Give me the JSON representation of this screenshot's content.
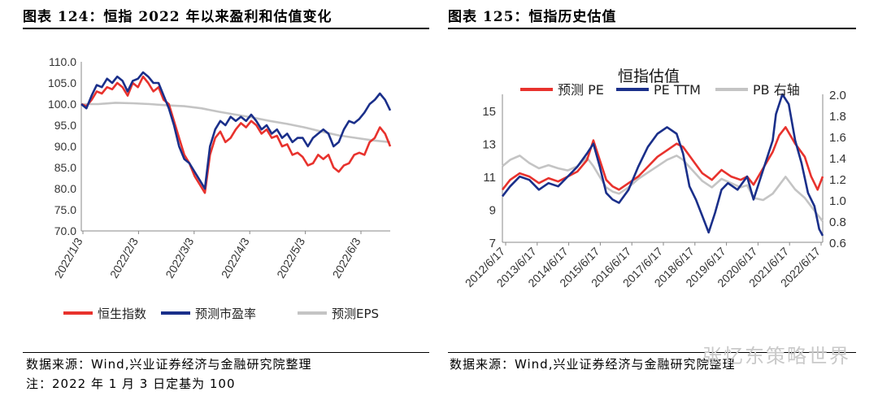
{
  "left_panel": {
    "title": "图表 124：恒指 2022 年以来盈利和估值变化",
    "source": "数据来源：Wind,兴业证券经济与金融研究院整理",
    "note": "注：2022 年 1 月 3 日定基为 100"
  },
  "right_panel": {
    "title": "图表 125：恒指历史估值",
    "source": "数据来源：Wind,兴业证券经济与金融研究院整理"
  },
  "watermark": "张忆东策略世界",
  "colors": {
    "red": "#e8322d",
    "navy": "#1a2f8a",
    "gray": "#c4c4c4"
  },
  "chart_data": [
    {
      "type": "line",
      "title": "",
      "xlabel": "",
      "ylabel": "",
      "ylim": [
        70,
        110
      ],
      "y_ticks": [
        "110.0",
        "105.0",
        "100.0",
        "95.0",
        "90.0",
        "85.0",
        "80.0",
        "75.0",
        "70.0"
      ],
      "x_ticks": [
        "2022/1/3",
        "2022/2/3",
        "2022/3/3",
        "2022/4/3",
        "2022/5/3",
        "2022/6/3"
      ],
      "x_range": [
        0,
        180
      ],
      "grid": false,
      "legend": "bottom",
      "series": [
        {
          "name": "恒生指数",
          "color": "#e8322d",
          "x": [
            0,
            3,
            6,
            9,
            12,
            15,
            18,
            21,
            24,
            27,
            30,
            33,
            36,
            39,
            42,
            45,
            48,
            51,
            54,
            57,
            60,
            63,
            66,
            69,
            72,
            75,
            78,
            81,
            84,
            87,
            90,
            93,
            96,
            99,
            102,
            105,
            108,
            111,
            114,
            117,
            120,
            123,
            126,
            129,
            132,
            135,
            138,
            141,
            144,
            147,
            150,
            153,
            156,
            159,
            162,
            165,
            168,
            171,
            174,
            177,
            180
          ],
          "y": [
            100,
            99.5,
            101,
            103,
            102.5,
            104,
            103.5,
            105,
            104,
            102,
            105,
            104,
            106.5,
            105,
            103,
            104,
            101,
            100,
            96,
            92,
            88,
            86,
            83,
            81,
            79,
            88,
            92,
            93.5,
            91,
            92,
            94,
            95.5,
            94.5,
            96,
            95,
            93,
            94,
            92,
            92.5,
            90,
            90.5,
            88,
            88.5,
            87.5,
            85.5,
            86,
            88,
            87,
            88,
            85,
            84,
            85.5,
            86,
            88,
            88.5,
            88,
            91,
            92,
            94.5,
            93,
            90
          ]
        },
        {
          "name": "预测市盈率",
          "color": "#1a2f8a",
          "x": [
            0,
            3,
            6,
            9,
            12,
            15,
            18,
            21,
            24,
            27,
            30,
            33,
            36,
            39,
            42,
            45,
            48,
            51,
            54,
            57,
            60,
            63,
            66,
            69,
            72,
            75,
            78,
            81,
            84,
            87,
            90,
            93,
            96,
            99,
            102,
            105,
            108,
            111,
            114,
            117,
            120,
            123,
            126,
            129,
            132,
            135,
            138,
            141,
            144,
            147,
            150,
            153,
            156,
            159,
            162,
            165,
            168,
            171,
            174,
            177,
            180
          ],
          "y": [
            100,
            99,
            102,
            104.5,
            104,
            106,
            105,
            106.5,
            105.5,
            103,
            105.5,
            106,
            107.5,
            106.5,
            105,
            105,
            102,
            99,
            95,
            90,
            87,
            86,
            84,
            82,
            80,
            90,
            94,
            96,
            95,
            97,
            96,
            97,
            96,
            97.5,
            96,
            94,
            95,
            93,
            94,
            92,
            93,
            91,
            92,
            92,
            90,
            92,
            93,
            94,
            93,
            90,
            91,
            94,
            96,
            95.5,
            96.5,
            98,
            100,
            101,
            102.5,
            101,
            98.5
          ]
        },
        {
          "name": "预测EPS",
          "color": "#c4c4c4",
          "x": [
            0,
            10,
            20,
            30,
            40,
            50,
            60,
            70,
            80,
            90,
            100,
            110,
            120,
            130,
            140,
            150,
            160,
            170,
            180
          ],
          "y": [
            100,
            100,
            100.3,
            100.2,
            100,
            99.7,
            99.5,
            99,
            98.2,
            97.5,
            96.8,
            96,
            95.3,
            94.5,
            93.5,
            92.6,
            92,
            91.4,
            91
          ]
        }
      ]
    },
    {
      "type": "line",
      "title": "恒指估值",
      "xlabel": "",
      "ylabel": "",
      "ylim": [
        7,
        16
      ],
      "ylim_right": [
        0.6,
        2.0
      ],
      "y_ticks": [
        "15",
        "13",
        "11",
        "9",
        "7"
      ],
      "y_ticks_right": [
        "2.0",
        "1.8",
        "1.6",
        "1.4",
        "1.2",
        "1.0",
        "0.8",
        "0.6"
      ],
      "x_ticks": [
        "2012/6/17",
        "2013/6/17",
        "2014/6/17",
        "2015/6/17",
        "2016/6/17",
        "2017/6/17",
        "2018/6/17",
        "2019/6/17",
        "2020/6/17",
        "2021/6/17",
        "2022/6/17"
      ],
      "x_range": [
        2012.46,
        2022.46
      ],
      "grid": false,
      "legend": "top",
      "series": [
        {
          "name": "预测 PE",
          "color": "#e8322d",
          "axis": "left",
          "x": [
            2012.46,
            2012.7,
            2013.0,
            2013.3,
            2013.6,
            2013.9,
            2014.2,
            2014.5,
            2014.8,
            2015.1,
            2015.3,
            2015.5,
            2015.7,
            2015.9,
            2016.1,
            2016.4,
            2016.7,
            2017.0,
            2017.3,
            2017.6,
            2017.9,
            2018.1,
            2018.4,
            2018.7,
            2019.0,
            2019.3,
            2019.6,
            2019.9,
            2020.1,
            2020.3,
            2020.6,
            2020.9,
            2021.1,
            2021.3,
            2021.6,
            2021.9,
            2022.1,
            2022.3,
            2022.46
          ],
          "y": [
            10.2,
            10.8,
            11.2,
            11.0,
            10.6,
            10.9,
            10.7,
            11.0,
            11.3,
            12.0,
            13.2,
            12.0,
            10.8,
            10.4,
            10.2,
            10.6,
            11.0,
            11.6,
            12.2,
            12.6,
            13.0,
            12.8,
            12.0,
            11.2,
            10.8,
            11.4,
            11.0,
            10.8,
            11.0,
            10.5,
            11.5,
            12.5,
            13.5,
            14.0,
            13.0,
            12.2,
            11.0,
            10.2,
            11.0
          ]
        },
        {
          "name": "PE TTM",
          "color": "#1a2f8a",
          "axis": "left",
          "x": [
            2012.46,
            2012.7,
            2013.0,
            2013.3,
            2013.6,
            2013.9,
            2014.2,
            2014.5,
            2014.8,
            2015.1,
            2015.3,
            2015.5,
            2015.7,
            2015.9,
            2016.1,
            2016.4,
            2016.7,
            2017.0,
            2017.3,
            2017.6,
            2017.9,
            2018.1,
            2018.3,
            2018.5,
            2018.7,
            2018.9,
            2019.1,
            2019.3,
            2019.5,
            2019.8,
            2020.1,
            2020.3,
            2020.6,
            2020.9,
            2021.0,
            2021.2,
            2021.4,
            2021.6,
            2021.8,
            2022.0,
            2022.2,
            2022.35,
            2022.46
          ],
          "y": [
            9.8,
            10.4,
            11.0,
            10.8,
            10.2,
            10.6,
            10.4,
            11.0,
            11.6,
            12.4,
            13.0,
            11.6,
            10.0,
            9.6,
            9.4,
            10.2,
            11.6,
            12.8,
            13.6,
            14.0,
            13.6,
            12.4,
            10.4,
            9.6,
            8.6,
            7.6,
            8.8,
            10.2,
            10.6,
            10.2,
            11.0,
            9.6,
            11.4,
            13.2,
            14.8,
            16.0,
            15.4,
            13.2,
            11.8,
            10.0,
            9.2,
            7.8,
            7.4
          ]
        },
        {
          "name": "PB 右轴",
          "color": "#c4c4c4",
          "axis": "right",
          "x": [
            2012.46,
            2012.7,
            2013.0,
            2013.3,
            2013.6,
            2013.9,
            2014.2,
            2014.5,
            2014.8,
            2015.1,
            2015.3,
            2015.5,
            2015.7,
            2015.9,
            2016.1,
            2016.4,
            2016.7,
            2017.0,
            2017.3,
            2017.6,
            2017.9,
            2018.1,
            2018.4,
            2018.7,
            2019.0,
            2019.3,
            2019.6,
            2019.9,
            2020.1,
            2020.3,
            2020.6,
            2020.9,
            2021.1,
            2021.3,
            2021.6,
            2021.9,
            2022.1,
            2022.3,
            2022.46
          ],
          "y": [
            1.32,
            1.38,
            1.42,
            1.35,
            1.3,
            1.33,
            1.3,
            1.28,
            1.32,
            1.4,
            1.32,
            1.22,
            1.12,
            1.08,
            1.06,
            1.12,
            1.2,
            1.26,
            1.32,
            1.38,
            1.42,
            1.38,
            1.28,
            1.18,
            1.12,
            1.2,
            1.16,
            1.12,
            1.14,
            1.02,
            1.0,
            1.06,
            1.14,
            1.22,
            1.1,
            1.02,
            0.94,
            0.86,
            0.8
          ]
        }
      ]
    }
  ]
}
